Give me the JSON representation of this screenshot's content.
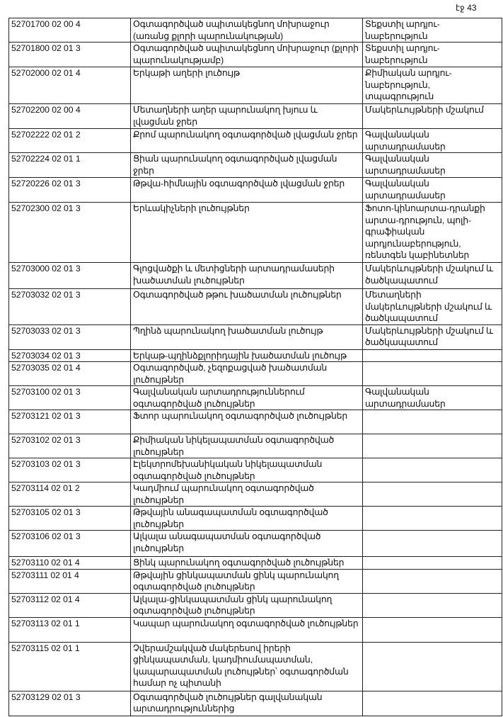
{
  "page_label": "էջ 43",
  "rows": [
    {
      "code": "52701700 02 00 4",
      "name": "Օգտագործված սպիտակեցնող մոխրաջուր (առանց քլորի պարունակության)",
      "source": "Տեքստիլ արդյու-նաբերություն"
    },
    {
      "code": "52701800 02 01 3",
      "name": "Օգտագործված սպիտակեցնող մոխրաջուր (քլորի պարունակությամբ)",
      "source": "Տեքստիլ արդյու-նաբերություն"
    },
    {
      "code": "52702000 02 01 4",
      "name": "Երկաթի աղերի լուծույթ",
      "source": "Քիմիական արդյու-նաբերություն, տպագրություն"
    },
    {
      "code": "52702200 02 00 4",
      "name": "Մետաղների աղեր պարունակող խյուս և լվացման ջրեր",
      "source": "Մակերևույթների մշակում"
    },
    {
      "code": "52702222 02 01 2",
      "name": "Քրոմ պարունակող օգտագործված լվացման ջրեր",
      "source": "Գալվանական արտադրամասեր"
    },
    {
      "code": "52702224 02 01 1",
      "name": "Ցիան պարունակող օգտագործված լվացման ջրեր",
      "source": "Գալվանական արտադրամասեր"
    },
    {
      "code": "52720226 02 01 3",
      "name": "Թթվա-հիմնային օգտագործված լվացման ջրեր",
      "source": "Գալվանական արտադրամասեր"
    },
    {
      "code": "52702300 02 01 3",
      "name": "Երևակիչների լուծույթներ",
      "source": "Ֆոտո-կինոարտա-դրանքի արտա-դրություն, պոլի-գրաֆիական արդյունաբերություն, ռենտգեն կաբինետներ"
    },
    {
      "code": "52703000 02 01 3",
      "name": "Գլոցվածքի և մետիցների արտադրամասերի խածատման լուծույթներ",
      "source": "Մակերևույթների մշակում և ծածկապատում"
    },
    {
      "code": "52703032 02 01 3",
      "name": "Օգտագործված թթու խածատման լուծույթներ",
      "source": "Մետաղների մակերևույթների մշակում և ծածկապատում"
    },
    {
      "code": "52703033 02 01 3",
      "name": "Պղինձ պարունակող խածատման լուծույթ",
      "source": "Մակերևույթների մշակում և ծածկապատում"
    },
    {
      "code": "52703034 02 01 3",
      "name": "Երկաթ-պղինձքլորիդային խածատման լուծույթ",
      "source": ""
    },
    {
      "code": "52703035 02 01 4",
      "name": "Օգտագործված, չեզոքացված խածատման լուծույթներ",
      "source": ""
    },
    {
      "code": "52703100 02 01 3",
      "name": "Գալվանական արտադրություններում օգտագործված լուծույթներ",
      "source": "Գալվանական արտադրամասեր"
    },
    {
      "code": "52703121 02 01 3",
      "name": "Ֆտոր պարունակող օգտագործված լուծույթներ",
      "source": ""
    },
    {
      "code": "52703102 02 01 3",
      "name": "Քիմիական նիկելապատման օգտագործված լուծույթներ",
      "source": ""
    },
    {
      "code": "52703103 02 01 3",
      "name": "Էլեկտրոմեխանիկական նիկելապատման օգտագործված լուծույթներ",
      "source": ""
    },
    {
      "code": "52703114 02 01 2",
      "name": "Կադմիում պարունակող օգտագործված լուծույթներ",
      "source": ""
    },
    {
      "code": "52703105 02 01 3",
      "name": "Թթվային անագապատման օգտագործված լուծույթներ",
      "source": ""
    },
    {
      "code": "52703106 02 01 3",
      "name": "Ալկալա անագապատման օգտագործված լուծույթներ",
      "source": ""
    },
    {
      "code": "52703110 02 01 4",
      "name": "Ցինկ պարունակող օգտագործված լուծույթներ",
      "source": ""
    },
    {
      "code": "52703111 02 01 4",
      "name": "Թթվային ցինկապատման ցինկ պարունակող օգտագործված լուծույթներ",
      "source": ""
    },
    {
      "code": "52703112 02 01 4",
      "name": "Ալկալա-ցինկապատման ցինկ պարունակող օգտագործված լուծույթներ",
      "source": ""
    },
    {
      "code": "52703113 02 01 1",
      "name": "Կապար պարունակող օգտագործված լուծույթներ",
      "source": ""
    },
    {
      "code": "52703115 02 01 1",
      "name": "Չվերամշակված մակերեսով իրերի ցինկապատման, կադմիումապատման, կապարապատման լուծույթներ՝ օգտագործման համար ոչ պիտանի",
      "source": ""
    },
    {
      "code": "52703129 02 01 3",
      "name": "Օգտագործված լուծույթներ գալվանական արտադրություններից",
      "source": ""
    }
  ]
}
